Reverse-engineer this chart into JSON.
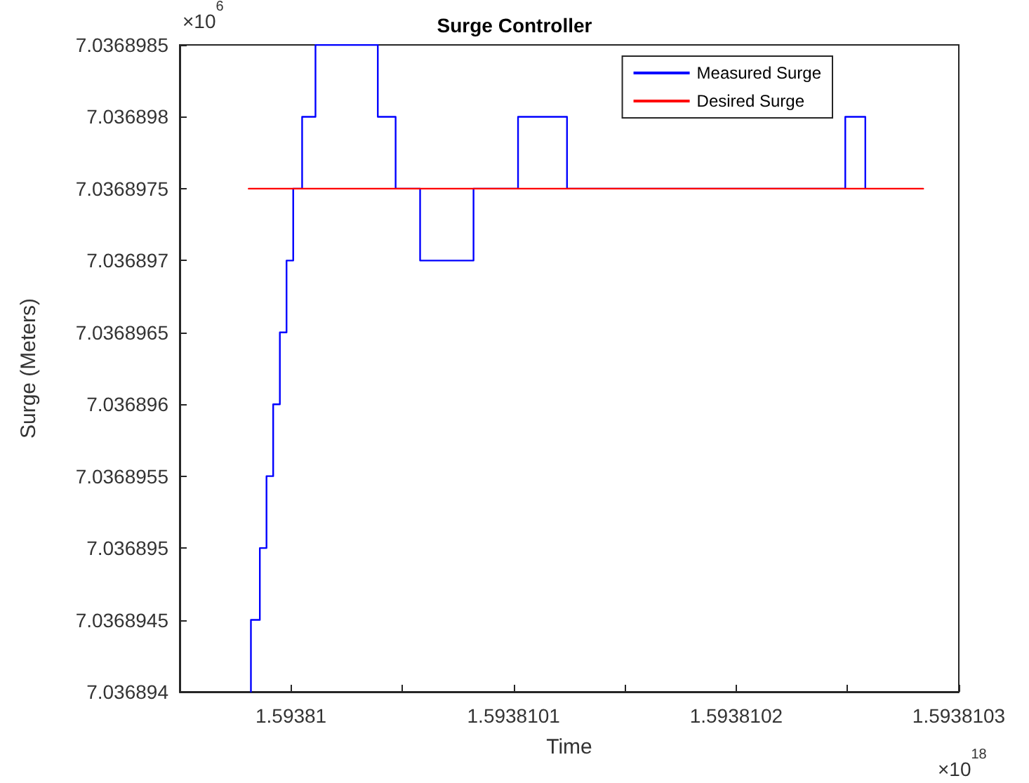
{
  "chart_data": {
    "type": "step",
    "title": "Surge Controller",
    "xlabel": "Time",
    "ylabel": "Surge (Meters)",
    "annotations": [
      "×10$^{6}$",
      "×10$^{18}$"
    ],
    "xlim": [
      1.59380995,
      1.5938103
    ],
    "xticks": [
      1.59381,
      {
        "value": 1.59381005,
        "label": null
      },
      1.5938101,
      {
        "value": 1.59381015,
        "label": null
      },
      1.5938102,
      {
        "value": 1.59381025,
        "label": null
      },
      1.5938103
    ],
    "ylim": [
      7.036894,
      7.0368985
    ],
    "yticks": [
      7.036894,
      7.0368945,
      7.036895,
      7.0368955,
      7.036896,
      7.0368965,
      7.036897,
      7.0368975,
      7.036898,
      7.0368985
    ],
    "grid": false,
    "legend": "top right",
    "marker": "none",
    "line_style": "solid",
    "series": [
      {
        "name": "Measured Surge",
        "color": "#0000ff",
        "type": "step",
        "x": [
          1.593809982,
          1.593809982,
          1.593809986,
          1.593809989,
          1.593809992,
          1.593809995,
          1.593809998,
          1.593810001,
          1.593810005,
          1.593810011,
          1.593810039,
          1.593810047,
          1.593810058,
          1.593810082,
          1.593810102,
          1.593810124,
          1.593810249,
          1.593810258
        ],
        "values": [
          7.036894,
          7.0368945,
          7.036895,
          7.0368955,
          7.036896,
          7.0368965,
          7.036897,
          7.0368975,
          7.036898,
          7.0368985,
          7.036898,
          7.0368975,
          7.036897,
          7.0368975,
          7.036898,
          7.0368975,
          7.036898,
          7.0368975
        ]
      },
      {
        "name": "Desired Surge",
        "color": "#ff0000",
        "type": "line",
        "x": [
          1.593809981,
          1.593810284
        ],
        "values": [
          7.0368975,
          7.0368975
        ]
      }
    ]
  }
}
